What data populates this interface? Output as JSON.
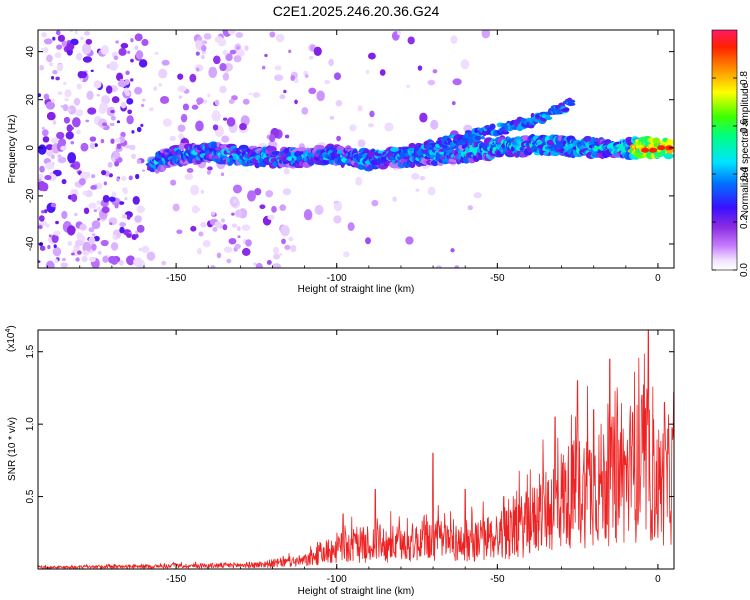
{
  "title": "C2E1.2025.246.20.36.G24",
  "chart_data": [
    {
      "type": "heatmap",
      "name": "spectrogram",
      "xlabel": "Height of straight line (km)",
      "ylabel": "Frequency (Hz)",
      "xlim": [
        -193,
        5
      ],
      "ylim": [
        -50,
        49
      ],
      "x_ticks": [
        -150,
        -100,
        -50,
        0
      ],
      "x_tick_labels": [
        "-150",
        "-100",
        "-50",
        "0"
      ],
      "y_ticks": [
        -40,
        -20,
        0,
        20,
        40
      ],
      "y_tick_labels": [
        "-40",
        "-20",
        "0",
        "20",
        "40"
      ],
      "band_main": {
        "description": "strong band",
        "points": [
          [
            -158,
            -7
          ],
          [
            -150,
            -3
          ],
          [
            -140,
            -2
          ],
          [
            -130,
            -3
          ],
          [
            -120,
            -4
          ],
          [
            -110,
            -4
          ],
          [
            -100,
            -3
          ],
          [
            -90,
            -5
          ],
          [
            -80,
            -4
          ],
          [
            -70,
            -3
          ],
          [
            -60,
            -2
          ],
          [
            -50,
            0
          ],
          [
            -40,
            1
          ],
          [
            -30,
            1
          ],
          [
            -20,
            0
          ],
          [
            -10,
            0
          ],
          [
            0,
            0
          ],
          [
            4,
            0
          ]
        ]
      },
      "band_harmonic": {
        "points": [
          [
            -90,
            -5
          ],
          [
            -70,
            1
          ],
          [
            -55,
            6
          ],
          [
            -45,
            9
          ],
          [
            -35,
            13
          ],
          [
            -27,
            19
          ]
        ]
      },
      "colorbar": {
        "label": "Normalized spectral amplitude",
        "range": [
          0,
          1
        ],
        "ticks": [
          0.0,
          0.2,
          0.4,
          0.6,
          0.8
        ],
        "tick_labels": [
          "0.0",
          "0.2",
          "0.4",
          "0.6",
          "0.8"
        ]
      }
    },
    {
      "type": "line",
      "name": "snr",
      "xlabel": "Height of straight line (km)",
      "ylabel": "SNR (10 * v/v)",
      "y_multiplier": "(x10⁴)",
      "y_multiplier_base": "(x10",
      "y_multiplier_exp": "4",
      "y_multiplier_close": ")",
      "xlim": [
        -193,
        5
      ],
      "ylim": [
        0,
        1.65
      ],
      "x_ticks": [
        -150,
        -100,
        -50,
        0
      ],
      "x_tick_labels": [
        "-150",
        "-100",
        "-50",
        "0"
      ],
      "y_ticks": [
        0.5,
        1.0,
        1.5
      ],
      "y_tick_labels": [
        "0.5",
        "1.0",
        "1.5"
      ],
      "series": [
        {
          "name": "SNR",
          "color": "#ee2222",
          "envelope": [
            [
              -193,
              0.02
            ],
            [
              -160,
              0.03
            ],
            [
              -140,
              0.04
            ],
            [
              -125,
              0.05
            ],
            [
              -110,
              0.1
            ],
            [
              -100,
              0.25
            ],
            [
              -90,
              0.3
            ],
            [
              -80,
              0.3
            ],
            [
              -70,
              0.35
            ],
            [
              -60,
              0.3
            ],
            [
              -50,
              0.4
            ],
            [
              -40,
              0.55
            ],
            [
              -30,
              0.85
            ],
            [
              -20,
              1.0
            ],
            [
              -10,
              1.1
            ],
            [
              -4,
              1.2
            ],
            [
              0,
              1.0
            ],
            [
              5,
              1.1
            ]
          ],
          "peaks": [
            [
              -98,
              0.38
            ],
            [
              -88,
              0.55
            ],
            [
              -70,
              0.8
            ],
            [
              -60,
              0.55
            ],
            [
              -48,
              0.5
            ],
            [
              -32,
              1.05
            ],
            [
              -25,
              1.3
            ],
            [
              -20,
              1.1
            ],
            [
              -15,
              1.45
            ],
            [
              -5,
              1.2
            ],
            [
              -3,
              1.65
            ],
            [
              2,
              1.15
            ],
            [
              5,
              1.22
            ]
          ]
        }
      ]
    }
  ],
  "colors": {
    "axis": "#000000",
    "line": "#ee2222"
  }
}
